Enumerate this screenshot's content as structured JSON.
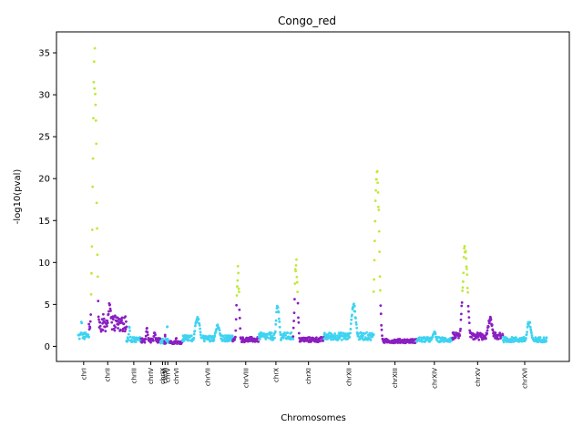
{
  "chart_data": {
    "type": "scatter",
    "title": "Congo_red",
    "xlabel": "Chromosomes",
    "ylabel": "-log10(pval)",
    "ylim": [
      -1.8,
      37.5
    ],
    "yticks": [
      0,
      5,
      10,
      15,
      20,
      25,
      30,
      35
    ],
    "grid": false,
    "legend": "none",
    "colors": {
      "cyan": "#3fd3f1",
      "purple": "#8a1fc0",
      "significant": "#bdea3a"
    },
    "significance_threshold": 6,
    "chromosomes": [
      {
        "name": "chrI",
        "color": "cyan",
        "peaks": [
          [
            0.3,
            3.0
          ]
        ],
        "base": 1.5
      },
      {
        "name": "chrII",
        "color": "purple",
        "peaks": [
          [
            0.15,
            35.5
          ],
          [
            0.55,
            5.0
          ]
        ],
        "base": 3.5
      },
      {
        "name": "chrIII",
        "color": "cyan",
        "peaks": [
          [
            0.2,
            2.5
          ]
        ],
        "base": 1.0
      },
      {
        "name": "chrIV",
        "color": "purple",
        "peaks": [
          [
            0.3,
            2.3
          ],
          [
            0.7,
            1.8
          ]
        ],
        "base": 0.9
      },
      {
        "name": "chrIX",
        "color": "cyan",
        "peaks": [
          [
            0.5,
            1.0
          ]
        ],
        "base": 0.6
      },
      {
        "name": "chrM",
        "color": "purple",
        "peaks": [
          [
            0.5,
            1.5
          ]
        ],
        "base": 0.6
      },
      {
        "name": "chrV",
        "color": "cyan",
        "peaks": [
          [
            0.4,
            3.0
          ]
        ],
        "base": 0.8
      },
      {
        "name": "chrVI",
        "color": "purple",
        "peaks": [
          [
            0.5,
            1.0
          ]
        ],
        "base": 0.6
      },
      {
        "name": "chrVII",
        "color": "cyan",
        "peaks": [
          [
            0.3,
            3.5
          ],
          [
            0.7,
            2.5
          ]
        ],
        "base": 1.2
      },
      {
        "name": "chrVIII",
        "color": "purple",
        "peaks": [
          [
            0.2,
            9.5
          ]
        ],
        "base": 1.0
      },
      {
        "name": "chrX",
        "color": "cyan",
        "peaks": [
          [
            0.55,
            5.0
          ]
        ],
        "base": 1.5
      },
      {
        "name": "chrXI",
        "color": "purple",
        "peaks": [
          [
            0.1,
            10.5
          ]
        ],
        "base": 1.0
      },
      {
        "name": "chrXII",
        "color": "cyan",
        "peaks": [
          [
            0.6,
            5.0
          ]
        ],
        "base": 1.5
      },
      {
        "name": "chrXIII",
        "color": "purple",
        "peaks": [
          [
            0.08,
            23.5
          ]
        ],
        "base": 0.8
      },
      {
        "name": "chrXIV",
        "color": "cyan",
        "peaks": [
          [
            0.5,
            1.8
          ]
        ],
        "base": 1.0
      },
      {
        "name": "chrXV",
        "color": "purple",
        "peaks": [
          [
            0.25,
            12.0
          ],
          [
            0.75,
            3.5
          ]
        ],
        "base": 1.5
      },
      {
        "name": "chrXVI",
        "color": "cyan",
        "peaks": [
          [
            0.6,
            3.0
          ]
        ],
        "base": 1.0
      }
    ],
    "chromosome_lengths": [
      230,
      813,
      317,
      420,
      90,
      20,
      95,
      270,
      1091,
      563,
      745,
      667,
      1078,
      924,
      784,
      1091,
      948
    ]
  }
}
